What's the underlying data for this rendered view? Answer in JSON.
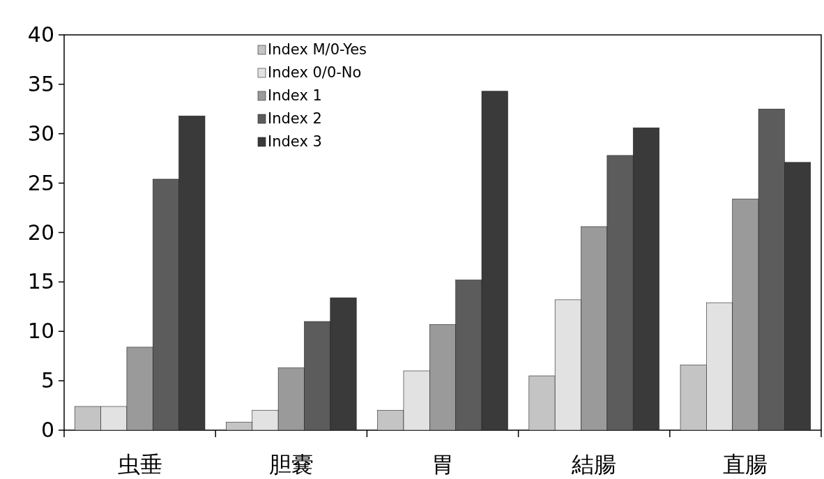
{
  "chart_data": {
    "type": "bar",
    "categories": [
      "虫垂",
      "胆嚢",
      "胃",
      "結腸",
      "直腸"
    ],
    "series": [
      {
        "name": "Index M/0-Yes",
        "color": "#c4c4c4",
        "values": [
          2.4,
          0.8,
          2.0,
          5.5,
          6.6
        ]
      },
      {
        "name": "Index 0/0-No",
        "color": "#e2e2e2",
        "values": [
          2.4,
          2.0,
          6.0,
          13.2,
          12.9
        ]
      },
      {
        "name": "Index 1",
        "color": "#9a9a9a",
        "values": [
          8.4,
          6.3,
          10.7,
          20.6,
          23.4
        ]
      },
      {
        "name": "Index 2",
        "color": "#5c5c5c",
        "values": [
          25.4,
          11.0,
          15.2,
          27.8,
          32.5
        ]
      },
      {
        "name": "Index 3",
        "color": "#3a3a3a",
        "values": [
          31.8,
          13.4,
          34.3,
          30.6,
          27.1
        ]
      }
    ],
    "ylim": [
      0,
      40
    ],
    "yticks": [
      0,
      5,
      10,
      15,
      20,
      25,
      30,
      35,
      40
    ],
    "legend": "top"
  }
}
